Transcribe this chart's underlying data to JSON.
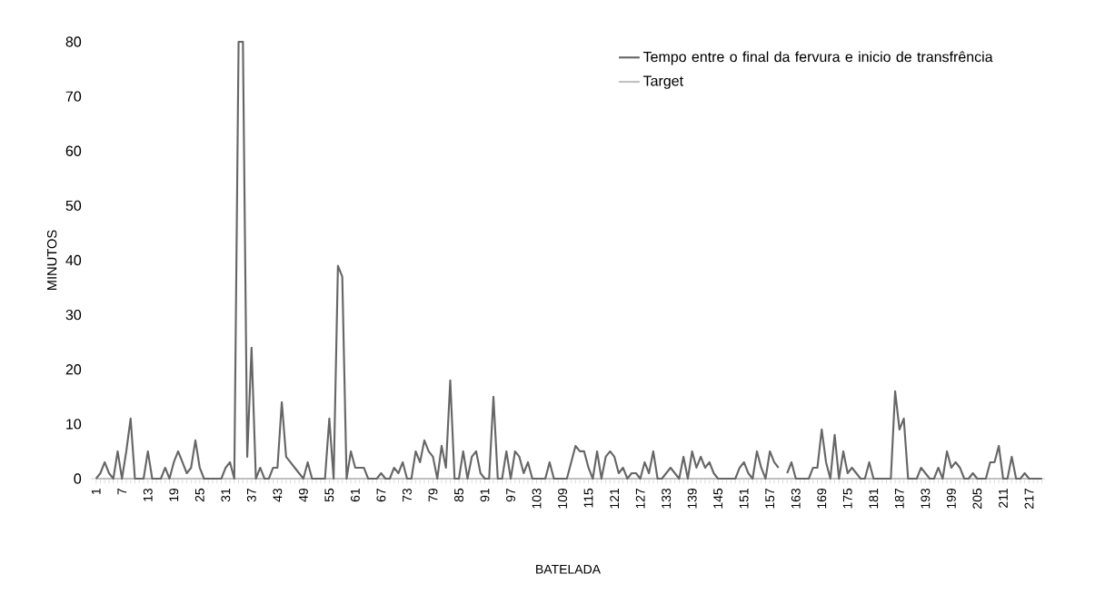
{
  "chart_data": {
    "type": "line",
    "xlabel": "BATELADA",
    "ylabel": "MINUTOS",
    "categories": [
      "1",
      null,
      null,
      null,
      null,
      null,
      "7",
      null,
      null,
      null,
      null,
      null,
      "13",
      null,
      null,
      null,
      null,
      null,
      "19",
      null,
      null,
      null,
      null,
      null,
      "25",
      null,
      null,
      null,
      null,
      null,
      "31",
      null,
      null,
      null,
      null,
      null,
      "37",
      null,
      null,
      null,
      null,
      null,
      "43",
      null,
      null,
      null,
      null,
      null,
      "49",
      null,
      null,
      null,
      null,
      null,
      "55",
      null,
      null,
      null,
      null,
      null,
      "61",
      null,
      null,
      null,
      null,
      null,
      "67",
      null,
      null,
      null,
      null,
      null,
      "73",
      null,
      null,
      null,
      null,
      null,
      "79",
      null,
      null,
      null,
      null,
      null,
      "85",
      null,
      null,
      null,
      null,
      null,
      "91",
      null,
      null,
      null,
      null,
      null,
      "97",
      null,
      null,
      null,
      null,
      null,
      "103",
      null,
      null,
      null,
      null,
      null,
      "109",
      null,
      null,
      null,
      null,
      null,
      "115",
      null,
      null,
      null,
      null,
      null,
      "121",
      null,
      null,
      null,
      null,
      null,
      "127",
      null,
      null,
      null,
      null,
      null,
      "133",
      null,
      null,
      null,
      null,
      null,
      "139",
      null,
      null,
      null,
      null,
      null,
      "145",
      null,
      null,
      null,
      null,
      null,
      "151",
      null,
      null,
      null,
      null,
      null,
      "157",
      null,
      null,
      null,
      null,
      null,
      "163",
      null,
      null,
      null,
      null,
      null,
      "169",
      null,
      null,
      null,
      null,
      null,
      "175",
      null,
      null,
      null,
      null,
      null,
      "181",
      null,
      null,
      null,
      null,
      null,
      "187",
      null,
      null,
      null,
      null,
      null,
      "193",
      null,
      null,
      null,
      null,
      null,
      "199",
      null,
      null,
      null,
      null,
      null,
      "205",
      null,
      null,
      null,
      null,
      null,
      "211",
      null,
      null,
      null,
      null,
      null,
      "217",
      null,
      null,
      null
    ],
    "series": [
      {
        "name": "Tempo entre o final da fervura e inicio de transfrência",
        "color": "#666666",
        "values": [
          0,
          1,
          3,
          1,
          0,
          5,
          0,
          5,
          11,
          0,
          0,
          0,
          5,
          0,
          0,
          0,
          2,
          0,
          3,
          5,
          3,
          1,
          2,
          7,
          2,
          0,
          0,
          0,
          0,
          0,
          2,
          3,
          0,
          80,
          80,
          4,
          24,
          0,
          2,
          0,
          0,
          2,
          2,
          14,
          4,
          3,
          2,
          1,
          0,
          3,
          0,
          0,
          0,
          0,
          11,
          0,
          39,
          37,
          0,
          5,
          2,
          2,
          2,
          0,
          0,
          0,
          1,
          0,
          0,
          2,
          1,
          3,
          0,
          0,
          5,
          3,
          7,
          5,
          4,
          0,
          6,
          2,
          18,
          0,
          0,
          5,
          0,
          4,
          5,
          1,
          0,
          0,
          15,
          0,
          0,
          5,
          0,
          5,
          4,
          1,
          3,
          0,
          0,
          0,
          0,
          3,
          0,
          0,
          0,
          0,
          3,
          6,
          5,
          5,
          2,
          0,
          5,
          0,
          4,
          5,
          4,
          1,
          2,
          0,
          1,
          1,
          0,
          3,
          1,
          5,
          0,
          0,
          1,
          2,
          1,
          0,
          4,
          0,
          5,
          2,
          4,
          2,
          3,
          1,
          0,
          0,
          0,
          0,
          0,
          2,
          3,
          1,
          0,
          5,
          2,
          0,
          5,
          3,
          2,
          null,
          1,
          3,
          0,
          0,
          0,
          0,
          2,
          2,
          9,
          3,
          0,
          8,
          0,
          5,
          1,
          2,
          1,
          0,
          0,
          3,
          0,
          0,
          0,
          0,
          0,
          16,
          9,
          11,
          0,
          0,
          0,
          2,
          1,
          0,
          0,
          2,
          0,
          5,
          2,
          3,
          2,
          0,
          0,
          1,
          0,
          0,
          0,
          3,
          3,
          6,
          0,
          0,
          4,
          0,
          0,
          1,
          0,
          0,
          0,
          0
        ]
      },
      {
        "name": "Target",
        "color": "#c0c0c0",
        "values": [
          0,
          0,
          0,
          0,
          0,
          0,
          0,
          0,
          0,
          0,
          0,
          0,
          0,
          0,
          0,
          0,
          0,
          0,
          0,
          0,
          0,
          0,
          0,
          0,
          0,
          0,
          0,
          0,
          0,
          0,
          0,
          0,
          0,
          0,
          0,
          0,
          0,
          0,
          0,
          0,
          0,
          0,
          0,
          0,
          0,
          0,
          0,
          0,
          0,
          0,
          0,
          0,
          0,
          0,
          0,
          0,
          0,
          0,
          0,
          0,
          0,
          0,
          0,
          0,
          0,
          0,
          0,
          0,
          0,
          0,
          0,
          0,
          0,
          0,
          0,
          0,
          0,
          0,
          0,
          0,
          0,
          0,
          0,
          0,
          0,
          0,
          0,
          0,
          0,
          0,
          0,
          0,
          0,
          0,
          0,
          0,
          0,
          0,
          0,
          0,
          0,
          0,
          0,
          0,
          0,
          0,
          0,
          0,
          0,
          0,
          0,
          0,
          0,
          0,
          0,
          0,
          0,
          0,
          0,
          0,
          0,
          0,
          0,
          0,
          0,
          0,
          0,
          0,
          0,
          0,
          0,
          0,
          0,
          0,
          0,
          0,
          0,
          0,
          0,
          0,
          0,
          0,
          0,
          0,
          0,
          0,
          0,
          0,
          0,
          0,
          0,
          0,
          0,
          0,
          0,
          0,
          0,
          0,
          0,
          0,
          0,
          0,
          0,
          0,
          0,
          0,
          0,
          0,
          0,
          0,
          0,
          0,
          0,
          0,
          0,
          0,
          0,
          0,
          0,
          0,
          0,
          0,
          0,
          0,
          0,
          0,
          0,
          0,
          0,
          0,
          0,
          0,
          0,
          0,
          0,
          0,
          0,
          0,
          0,
          0,
          0,
          0,
          0,
          0,
          0,
          0,
          0,
          0,
          0,
          0,
          0,
          0,
          0,
          0,
          0,
          0,
          0,
          0,
          0,
          0
        ]
      }
    ],
    "ylim": [
      0,
      80
    ],
    "yticks": [
      0,
      10,
      20,
      30,
      40,
      50,
      60,
      70,
      80
    ],
    "legend": "top right",
    "marker": "none",
    "line_style": "solid"
  }
}
